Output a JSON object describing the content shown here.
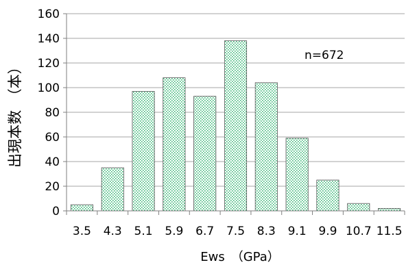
{
  "chart_data": {
    "type": "bar",
    "categories": [
      "3.5",
      "4.3",
      "5.1",
      "5.9",
      "6.7",
      "7.5",
      "8.3",
      "9.1",
      "9.9",
      "10.7",
      "11.5"
    ],
    "values": [
      5,
      35,
      97,
      108,
      93,
      138,
      104,
      59,
      25,
      6,
      2
    ],
    "ylim": [
      0,
      160
    ],
    "yticks": [
      "0",
      "20",
      "40",
      "60",
      "80",
      "100",
      "120",
      "140",
      "160"
    ],
    "ylabel": "出現本数　（本）",
    "xlabel": "Ews　（GPa）",
    "annotation": "n=672",
    "grid": true,
    "legend": "none",
    "colors": {
      "bar_fill_dots": "#3cb878",
      "bar_border": "#555555",
      "grid": "#a6a6a6",
      "axis": "#7f7f7f"
    }
  }
}
